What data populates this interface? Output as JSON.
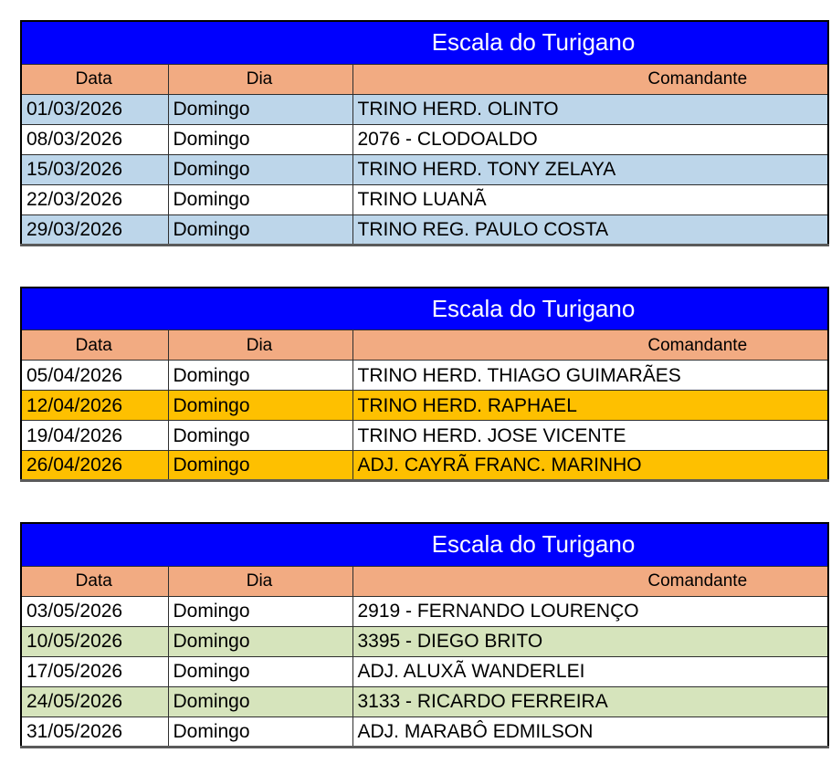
{
  "colors": {
    "title_bg": "#0000FE",
    "title_text": "#FFFFFF",
    "header_bg": "#F2AB82",
    "row_blue": "#BDD6EA",
    "row_orange": "#FEC000",
    "row_green": "#D6E4BC",
    "row_white": "#FFFFFF",
    "grid_border": "#2F2F2F",
    "outer_border": "#000000"
  },
  "tables": [
    {
      "title": "Escala do Turigano",
      "columns": [
        "Data",
        "Dia",
        "Comandante"
      ],
      "rows": [
        {
          "data": "01/03/2026",
          "dia": "Domingo",
          "comandante": "TRINO HERD. OLINTO",
          "highlight": "blue"
        },
        {
          "data": "08/03/2026",
          "dia": "Domingo",
          "comandante": "2076 - CLODOALDO",
          "highlight": "white"
        },
        {
          "data": "15/03/2026",
          "dia": "Domingo",
          "comandante": "TRINO HERD. TONY ZELAYA",
          "highlight": "blue"
        },
        {
          "data": "22/03/2026",
          "dia": "Domingo",
          "comandante": "TRINO LUANÃ",
          "highlight": "white"
        },
        {
          "data": "29/03/2026",
          "dia": "Domingo",
          "comandante": "TRINO REG. PAULO COSTA",
          "highlight": "blue"
        }
      ]
    },
    {
      "title": "Escala do Turigano",
      "columns": [
        "Data",
        "Dia",
        "Comandante"
      ],
      "rows": [
        {
          "data": "05/04/2026",
          "dia": "Domingo",
          "comandante": "TRINO HERD. THIAGO GUIMARÃES",
          "highlight": "white"
        },
        {
          "data": "12/04/2026",
          "dia": "Domingo",
          "comandante": "TRINO HERD. RAPHAEL",
          "highlight": "orange"
        },
        {
          "data": "19/04/2026",
          "dia": "Domingo",
          "comandante": "TRINO HERD. JOSE VICENTE",
          "highlight": "white"
        },
        {
          "data": "26/04/2026",
          "dia": "Domingo",
          "comandante": "ADJ. CAYRÃ FRANC. MARINHO",
          "highlight": "orange"
        }
      ]
    },
    {
      "title": "Escala do Turigano",
      "columns": [
        "Data",
        "Dia",
        "Comandante"
      ],
      "rows": [
        {
          "data": "03/05/2026",
          "dia": "Domingo",
          "comandante": "2919 - FERNANDO LOURENÇO",
          "highlight": "white"
        },
        {
          "data": "10/05/2026",
          "dia": "Domingo",
          "comandante": "3395 - DIEGO BRITO",
          "highlight": "green"
        },
        {
          "data": "17/05/2026",
          "dia": "Domingo",
          "comandante": "ADJ. ALUXÃ WANDERLEI",
          "highlight": "white"
        },
        {
          "data": "24/05/2026",
          "dia": "Domingo",
          "comandante": "3133 - RICARDO FERREIRA",
          "highlight": "green"
        },
        {
          "data": "31/05/2026",
          "dia": "Domingo",
          "comandante": "ADJ. MARABÔ EDMILSON",
          "highlight": "white"
        }
      ]
    }
  ]
}
